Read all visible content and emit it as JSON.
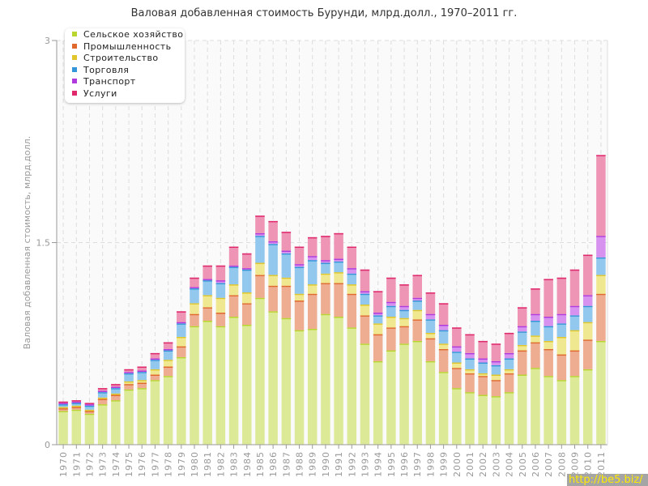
{
  "chart_data": {
    "type": "bar",
    "stacked": true,
    "title": "Валовая добавленная стоимость Бурунди, млрд.долл., 1970–2011 гг.",
    "xlabel": "",
    "ylabel": "Валовая добавленная стоимость, млрд.долл.",
    "ylim": [
      0,
      3
    ],
    "yticks": [
      "0",
      "1.5",
      "3"
    ],
    "grid": true,
    "legend_position": "top-left",
    "categories": [
      "1970",
      "1971",
      "1972",
      "1973",
      "1974",
      "1975",
      "1976",
      "1977",
      "1978",
      "1979",
      "1980",
      "1981",
      "1982",
      "1983",
      "1984",
      "1985",
      "1986",
      "1987",
      "1988",
      "1989",
      "1990",
      "1991",
      "1992",
      "1993",
      "1994",
      "1995",
      "1996",
      "1997",
      "1998",
      "1999",
      "2000",
      "2001",
      "2002",
      "2003",
      "2004",
      "2005",
      "2006",
      "2007",
      "2008",
      "2009",
      "2010",
      "2011"
    ],
    "series": [
      {
        "name": "Сельское хозяйство",
        "fill": "#dcea98",
        "stroke": "#b8d62e",
        "values": [
          0.25,
          0.26,
          0.23,
          0.3,
          0.33,
          0.41,
          0.42,
          0.48,
          0.51,
          0.65,
          0.88,
          0.92,
          0.88,
          0.95,
          0.89,
          1.09,
          0.99,
          0.94,
          0.85,
          0.86,
          0.97,
          0.95,
          0.87,
          0.75,
          0.62,
          0.7,
          0.75,
          0.77,
          0.62,
          0.54,
          0.42,
          0.39,
          0.37,
          0.36,
          0.39,
          0.52,
          0.57,
          0.51,
          0.48,
          0.51,
          0.56,
          0.77
        ]
      },
      {
        "name": "Промышленность",
        "fill": "#eeac90",
        "stroke": "#e06a2e",
        "values": [
          0.02,
          0.02,
          0.02,
          0.04,
          0.04,
          0.04,
          0.04,
          0.04,
          0.07,
          0.08,
          0.09,
          0.1,
          0.1,
          0.16,
          0.16,
          0.17,
          0.19,
          0.24,
          0.22,
          0.26,
          0.23,
          0.25,
          0.25,
          0.21,
          0.2,
          0.17,
          0.13,
          0.16,
          0.17,
          0.17,
          0.15,
          0.14,
          0.14,
          0.12,
          0.14,
          0.18,
          0.19,
          0.2,
          0.19,
          0.19,
          0.22,
          0.35
        ]
      },
      {
        "name": "Строительство",
        "fill": "#f0e890",
        "stroke": "#e0c62a",
        "values": [
          0.01,
          0.01,
          0.01,
          0.01,
          0.01,
          0.02,
          0.02,
          0.04,
          0.05,
          0.07,
          0.08,
          0.09,
          0.11,
          0.08,
          0.08,
          0.09,
          0.08,
          0.06,
          0.05,
          0.07,
          0.07,
          0.08,
          0.07,
          0.08,
          0.08,
          0.08,
          0.06,
          0.07,
          0.04,
          0.04,
          0.04,
          0.03,
          0.02,
          0.04,
          0.03,
          0.04,
          0.05,
          0.06,
          0.13,
          0.15,
          0.13,
          0.14
        ]
      },
      {
        "name": "Торговля",
        "fill": "#92c8ee",
        "stroke": "#3496d8",
        "values": [
          0.02,
          0.02,
          0.03,
          0.04,
          0.04,
          0.06,
          0.06,
          0.07,
          0.07,
          0.1,
          0.11,
          0.11,
          0.11,
          0.13,
          0.17,
          0.2,
          0.23,
          0.18,
          0.2,
          0.18,
          0.08,
          0.08,
          0.08,
          0.08,
          0.06,
          0.08,
          0.06,
          0.07,
          0.1,
          0.1,
          0.08,
          0.08,
          0.08,
          0.07,
          0.08,
          0.1,
          0.11,
          0.11,
          0.1,
          0.11,
          0.12,
          0.13
        ]
      },
      {
        "name": "Транспорт",
        "fill": "#d692ee",
        "stroke": "#b03ade",
        "values": [
          0.01,
          0.01,
          0.01,
          0.01,
          0.01,
          0.01,
          0.01,
          0.01,
          0.01,
          0.01,
          0.01,
          0.01,
          0.02,
          0.01,
          0.01,
          0.02,
          0.02,
          0.02,
          0.02,
          0.03,
          0.02,
          0.02,
          0.04,
          0.02,
          0.02,
          0.03,
          0.03,
          0.02,
          0.04,
          0.04,
          0.04,
          0.04,
          0.03,
          0.03,
          0.04,
          0.04,
          0.05,
          0.07,
          0.07,
          0.07,
          0.08,
          0.16
        ]
      },
      {
        "name": "Услуги",
        "fill": "#ee94b4",
        "stroke": "#e0286c",
        "values": [
          0.01,
          0.01,
          0.01,
          0.02,
          0.02,
          0.02,
          0.03,
          0.04,
          0.05,
          0.08,
          0.07,
          0.1,
          0.11,
          0.14,
          0.11,
          0.13,
          0.15,
          0.14,
          0.13,
          0.14,
          0.18,
          0.19,
          0.16,
          0.16,
          0.16,
          0.18,
          0.16,
          0.17,
          0.16,
          0.16,
          0.14,
          0.14,
          0.13,
          0.13,
          0.15,
          0.14,
          0.19,
          0.28,
          0.27,
          0.27,
          0.3,
          0.6
        ]
      }
    ]
  },
  "watermark": "http://be5.biz/"
}
